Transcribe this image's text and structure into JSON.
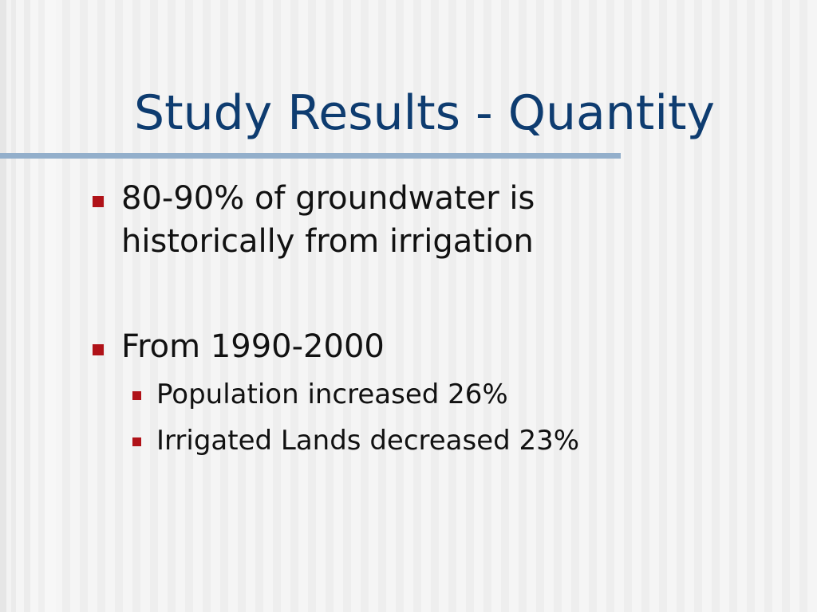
{
  "slide": {
    "title": "Study Results - Quantity",
    "bullets": [
      {
        "lines": [
          "80-90% of groundwater is",
          "historically from irrigation"
        ]
      },
      {
        "lines": [
          "From 1990-2000"
        ],
        "sub_bullets": [
          "Population increased 26%",
          "Irrigated Lands decreased 23%"
        ]
      }
    ]
  },
  "colors": {
    "title": "#0e3c70",
    "rule": "#93afcb",
    "bullet_marker": "#b01218",
    "text": "#111111"
  }
}
